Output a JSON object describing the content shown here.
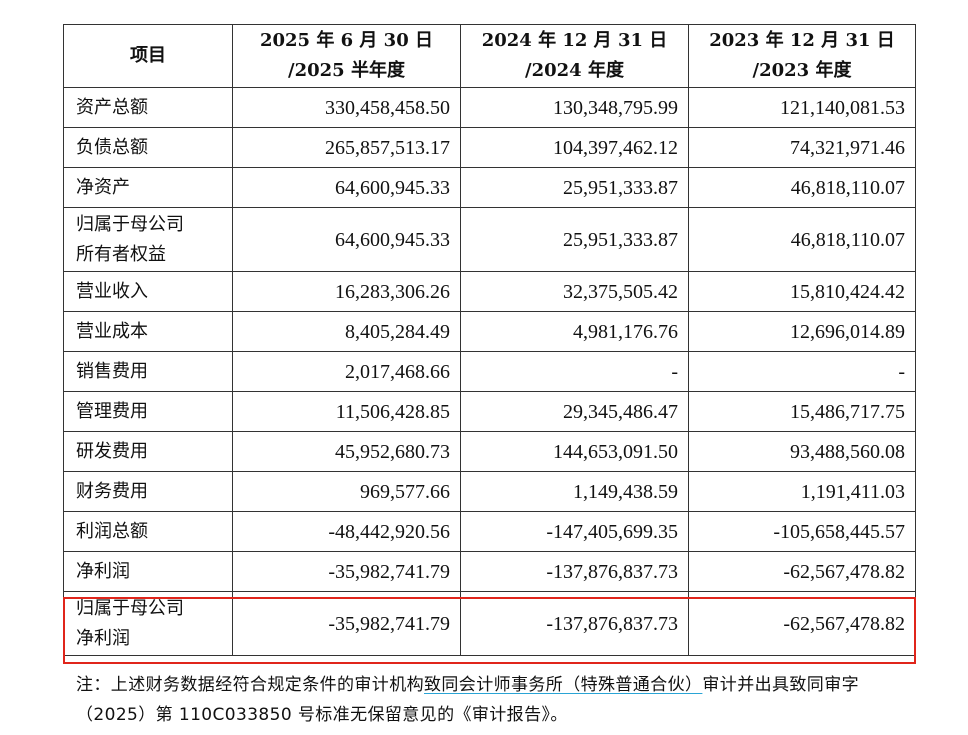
{
  "table": {
    "headers": [
      {
        "line1": "项目",
        "line2": ""
      },
      {
        "line1": "2025 年 6 月 30 日",
        "line2": "/2025 半年度"
      },
      {
        "line1": "2024 年 12 月 31 日",
        "line2": "/2024 年度"
      },
      {
        "line1": "2023 年 12 月 31 日",
        "line2": "/2023 年度"
      }
    ],
    "rows": [
      {
        "label1": "资产总额",
        "label2": "",
        "v2025": "330,458,458.50",
        "v2024": "130,348,795.99",
        "v2023": "121,140,081.53"
      },
      {
        "label1": "负债总额",
        "label2": "",
        "v2025": "265,857,513.17",
        "v2024": "104,397,462.12",
        "v2023": "74,321,971.46"
      },
      {
        "label1": "净资产",
        "label2": "",
        "v2025": "64,600,945.33",
        "v2024": "25,951,333.87",
        "v2023": "46,818,110.07"
      },
      {
        "label1": "归属于母公司",
        "label2": "所有者权益",
        "v2025": "64,600,945.33",
        "v2024": "25,951,333.87",
        "v2023": "46,818,110.07"
      },
      {
        "label1": "营业收入",
        "label2": "",
        "v2025": "16,283,306.26",
        "v2024": "32,375,505.42",
        "v2023": "15,810,424.42"
      },
      {
        "label1": "营业成本",
        "label2": "",
        "v2025": "8,405,284.49",
        "v2024": "4,981,176.76",
        "v2023": "12,696,014.89"
      },
      {
        "label1": "销售费用",
        "label2": "",
        "v2025": "2,017,468.66",
        "v2024": "-",
        "v2023": "-"
      },
      {
        "label1": "管理费用",
        "label2": "",
        "v2025": "11,506,428.85",
        "v2024": "29,345,486.47",
        "v2023": "15,486,717.75"
      },
      {
        "label1": "研发费用",
        "label2": "",
        "v2025": "45,952,680.73",
        "v2024": "144,653,091.50",
        "v2023": "93,488,560.08"
      },
      {
        "label1": "财务费用",
        "label2": "",
        "v2025": "969,577.66",
        "v2024": "1,149,438.59",
        "v2023": "1,191,411.03"
      },
      {
        "label1": "利润总额",
        "label2": "",
        "v2025": "-48,442,920.56",
        "v2024": "-147,405,699.35",
        "v2023": "-105,658,445.57"
      },
      {
        "label1": "净利润",
        "label2": "",
        "v2025": "-35,982,741.79",
        "v2024": "-137,876,837.73",
        "v2023": "-62,567,478.82"
      },
      {
        "label1": "归属于母公司",
        "label2": "净利润",
        "v2025": "-35,982,741.79",
        "v2024": "-137,876,837.73",
        "v2023": "-62,567,478.82"
      }
    ]
  },
  "note": {
    "part1": "注：上述财务数据经符合规定条件的审计机构",
    "underlined": "致同会计师事务所（特殊普通合伙）",
    "part2": "审计并出具致同审字（2025）第 110C033850 号标准无保留意见的《审计报告》。"
  },
  "colors": {
    "highlight_border": "#e0251b",
    "underline": "#2aa4d5"
  }
}
